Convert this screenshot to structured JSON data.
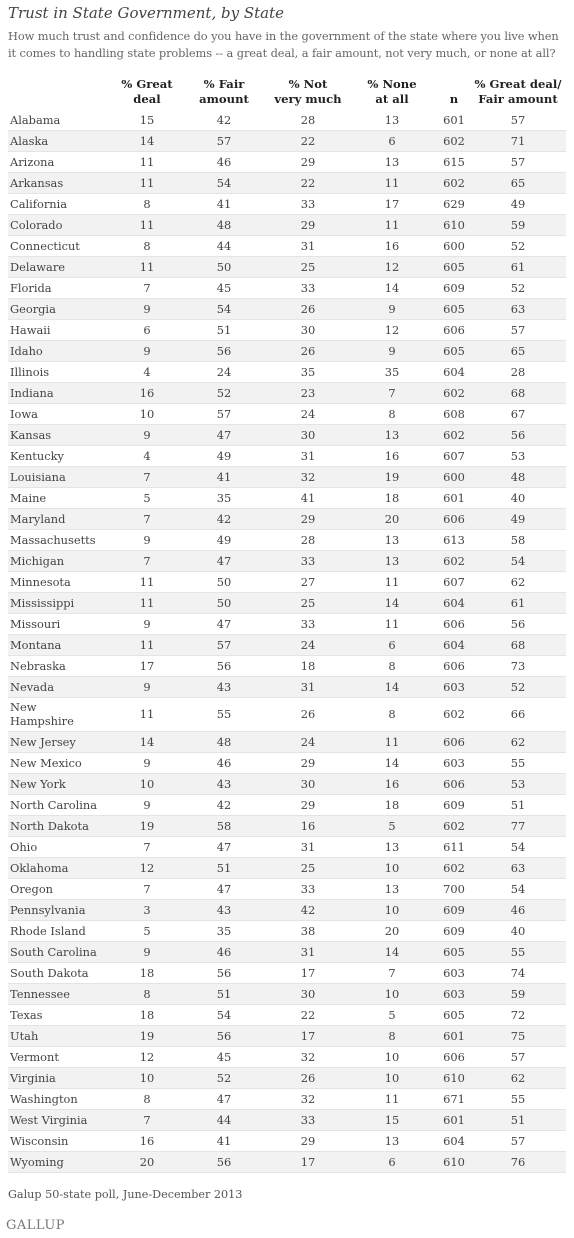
{
  "title": "Trust in State Government, by State",
  "question": "How much trust and confidence do you have in the government of the state where you live when it comes to handling state problems -- a great deal, a fair amount, not very much, or none at all?",
  "source": "Galup 50-state poll, June-December 2013",
  "logo": "GALLUP",
  "chart_data": {
    "type": "table",
    "columns": [
      "% Great\ndeal",
      "% Fair\namount",
      "% Not\nvery much",
      "% None\nat all",
      "n",
      "% Great deal/\nFair amount"
    ],
    "rows": [
      {
        "state": "Alabama",
        "values": [
          15,
          42,
          28,
          13,
          601,
          57
        ]
      },
      {
        "state": "Alaska",
        "values": [
          14,
          57,
          22,
          6,
          602,
          71
        ]
      },
      {
        "state": "Arizona",
        "values": [
          11,
          46,
          29,
          13,
          615,
          57
        ]
      },
      {
        "state": "Arkansas",
        "values": [
          11,
          54,
          22,
          11,
          602,
          65
        ]
      },
      {
        "state": "California",
        "values": [
          8,
          41,
          33,
          17,
          629,
          49
        ]
      },
      {
        "state": "Colorado",
        "values": [
          11,
          48,
          29,
          11,
          610,
          59
        ]
      },
      {
        "state": "Connecticut",
        "values": [
          8,
          44,
          31,
          16,
          600,
          52
        ]
      },
      {
        "state": "Delaware",
        "values": [
          11,
          50,
          25,
          12,
          605,
          61
        ]
      },
      {
        "state": "Florida",
        "values": [
          7,
          45,
          33,
          14,
          609,
          52
        ]
      },
      {
        "state": "Georgia",
        "values": [
          9,
          54,
          26,
          9,
          605,
          63
        ]
      },
      {
        "state": "Hawaii",
        "values": [
          6,
          51,
          30,
          12,
          606,
          57
        ]
      },
      {
        "state": "Idaho",
        "values": [
          9,
          56,
          26,
          9,
          605,
          65
        ]
      },
      {
        "state": "Illinois",
        "values": [
          4,
          24,
          35,
          35,
          604,
          28
        ]
      },
      {
        "state": "Indiana",
        "values": [
          16,
          52,
          23,
          7,
          602,
          68
        ]
      },
      {
        "state": "Iowa",
        "values": [
          10,
          57,
          24,
          8,
          608,
          67
        ]
      },
      {
        "state": "Kansas",
        "values": [
          9,
          47,
          30,
          13,
          602,
          56
        ]
      },
      {
        "state": "Kentucky",
        "values": [
          4,
          49,
          31,
          16,
          607,
          53
        ]
      },
      {
        "state": "Louisiana",
        "values": [
          7,
          41,
          32,
          19,
          600,
          48
        ]
      },
      {
        "state": "Maine",
        "values": [
          5,
          35,
          41,
          18,
          601,
          40
        ]
      },
      {
        "state": "Maryland",
        "values": [
          7,
          42,
          29,
          20,
          606,
          49
        ]
      },
      {
        "state": "Massachusetts",
        "values": [
          9,
          49,
          28,
          13,
          613,
          58
        ]
      },
      {
        "state": "Michigan",
        "values": [
          7,
          47,
          33,
          13,
          602,
          54
        ]
      },
      {
        "state": "Minnesota",
        "values": [
          11,
          50,
          27,
          11,
          607,
          62
        ]
      },
      {
        "state": "Mississippi",
        "values": [
          11,
          50,
          25,
          14,
          604,
          61
        ]
      },
      {
        "state": "Missouri",
        "values": [
          9,
          47,
          33,
          11,
          606,
          56
        ]
      },
      {
        "state": "Montana",
        "values": [
          11,
          57,
          24,
          6,
          604,
          68
        ]
      },
      {
        "state": "Nebraska",
        "values": [
          17,
          56,
          18,
          8,
          606,
          73
        ]
      },
      {
        "state": "Nevada",
        "values": [
          9,
          43,
          31,
          14,
          603,
          52
        ]
      },
      {
        "state": "New\nHampshire",
        "values": [
          11,
          55,
          26,
          8,
          602,
          66
        ]
      },
      {
        "state": "New Jersey",
        "values": [
          14,
          48,
          24,
          11,
          606,
          62
        ]
      },
      {
        "state": "New Mexico",
        "values": [
          9,
          46,
          29,
          14,
          603,
          55
        ]
      },
      {
        "state": "New York",
        "values": [
          10,
          43,
          30,
          16,
          606,
          53
        ]
      },
      {
        "state": "North Carolina",
        "values": [
          9,
          42,
          29,
          18,
          609,
          51
        ]
      },
      {
        "state": "North Dakota",
        "values": [
          19,
          58,
          16,
          5,
          602,
          77
        ]
      },
      {
        "state": "Ohio",
        "values": [
          7,
          47,
          31,
          13,
          611,
          54
        ]
      },
      {
        "state": "Oklahoma",
        "values": [
          12,
          51,
          25,
          10,
          602,
          63
        ]
      },
      {
        "state": "Oregon",
        "values": [
          7,
          47,
          33,
          13,
          700,
          54
        ]
      },
      {
        "state": "Pennsylvania",
        "values": [
          3,
          43,
          42,
          10,
          609,
          46
        ]
      },
      {
        "state": "Rhode Island",
        "values": [
          5,
          35,
          38,
          20,
          609,
          40
        ]
      },
      {
        "state": "South Carolina",
        "values": [
          9,
          46,
          31,
          14,
          605,
          55
        ]
      },
      {
        "state": "South Dakota",
        "values": [
          18,
          56,
          17,
          7,
          603,
          74
        ]
      },
      {
        "state": "Tennessee",
        "values": [
          8,
          51,
          30,
          10,
          603,
          59
        ]
      },
      {
        "state": "Texas",
        "values": [
          18,
          54,
          22,
          5,
          605,
          72
        ]
      },
      {
        "state": "Utah",
        "values": [
          19,
          56,
          17,
          8,
          601,
          75
        ]
      },
      {
        "state": "Vermont",
        "values": [
          12,
          45,
          32,
          10,
          606,
          57
        ]
      },
      {
        "state": "Virginia",
        "values": [
          10,
          52,
          26,
          10,
          610,
          62
        ]
      },
      {
        "state": "Washington",
        "values": [
          8,
          47,
          32,
          11,
          671,
          55
        ]
      },
      {
        "state": "West Virginia",
        "values": [
          7,
          44,
          33,
          15,
          601,
          51
        ]
      },
      {
        "state": "Wisconsin",
        "values": [
          16,
          41,
          29,
          13,
          604,
          57
        ]
      },
      {
        "state": "Wyoming",
        "values": [
          20,
          56,
          17,
          6,
          610,
          76
        ]
      }
    ]
  }
}
